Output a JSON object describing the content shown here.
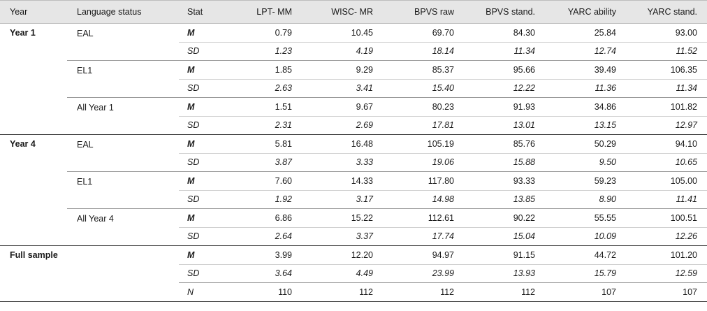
{
  "headers": [
    "Year",
    "Language status",
    "Stat",
    "LPT- MM",
    "WISC- MR",
    "BPVS raw",
    "BPVS stand.",
    "YARC ability",
    "YARC stand."
  ],
  "year1": {
    "label": "Year 1",
    "eal": {
      "label": "EAL",
      "m": {
        "stat": "M",
        "v": [
          "0.79",
          "10.45",
          "69.70",
          "84.30",
          "25.84",
          "93.00"
        ]
      },
      "sd": {
        "stat": "SD",
        "v": [
          "1.23",
          "4.19",
          "18.14",
          "11.34",
          "12.74",
          "11.52"
        ]
      }
    },
    "el1": {
      "label": "EL1",
      "m": {
        "stat": "M",
        "v": [
          "1.85",
          "9.29",
          "85.37",
          "95.66",
          "39.49",
          "106.35"
        ]
      },
      "sd": {
        "stat": "SD",
        "v": [
          "2.63",
          "3.41",
          "15.40",
          "12.22",
          "11.36",
          "11.34"
        ]
      }
    },
    "all": {
      "label": "All Year 1",
      "m": {
        "stat": "M",
        "v": [
          "1.51",
          "9.67",
          "80.23",
          "91.93",
          "34.86",
          "101.82"
        ]
      },
      "sd": {
        "stat": "SD",
        "v": [
          "2.31",
          "2.69",
          "17.81",
          "13.01",
          "13.15",
          "12.97"
        ]
      }
    }
  },
  "year4": {
    "label": "Year 4",
    "eal": {
      "label": "EAL",
      "m": {
        "stat": "M",
        "v": [
          "5.81",
          "16.48",
          "105.19",
          "85.76",
          "50.29",
          "94.10"
        ]
      },
      "sd": {
        "stat": "SD",
        "v": [
          "3.87",
          "3.33",
          "19.06",
          "15.88",
          "9.50",
          "10.65"
        ]
      }
    },
    "el1": {
      "label": "EL1",
      "m": {
        "stat": "M",
        "v": [
          "7.60",
          "14.33",
          "117.80",
          "93.33",
          "59.23",
          "105.00"
        ]
      },
      "sd": {
        "stat": "SD",
        "v": [
          "1.92",
          "3.17",
          "14.98",
          "13.85",
          "8.90",
          "11.41"
        ]
      }
    },
    "all": {
      "label": "All Year 4",
      "m": {
        "stat": "M",
        "v": [
          "6.86",
          "15.22",
          "112.61",
          "90.22",
          "55.55",
          "100.51"
        ]
      },
      "sd": {
        "stat": "SD",
        "v": [
          "2.64",
          "3.37",
          "17.74",
          "15.04",
          "10.09",
          "12.26"
        ]
      }
    }
  },
  "full": {
    "label": "Full sample",
    "m": {
      "stat": "M",
      "v": [
        "3.99",
        "12.20",
        "94.97",
        "91.15",
        "44.72",
        "101.20"
      ]
    },
    "sd": {
      "stat": "SD",
      "v": [
        "3.64",
        "4.49",
        "23.99",
        "13.93",
        "15.79",
        "12.59"
      ]
    },
    "n": {
      "stat": "N",
      "v": [
        "110",
        "112",
        "112",
        "112",
        "107",
        "107"
      ]
    }
  }
}
